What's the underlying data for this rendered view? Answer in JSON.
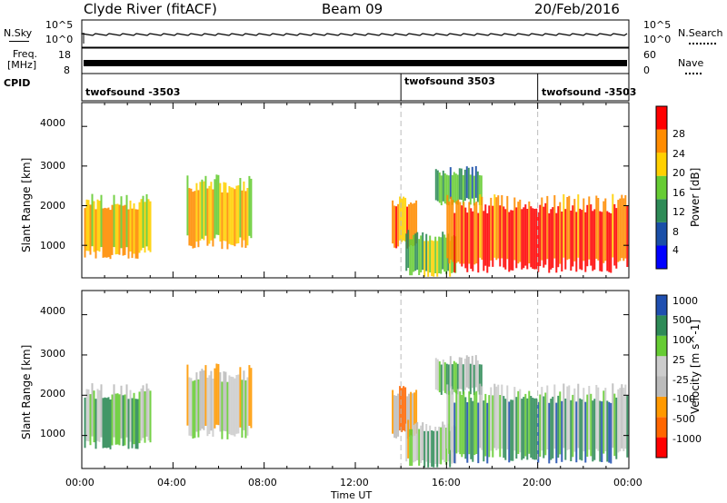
{
  "header": {
    "station": "Clyde River (fitACF)",
    "beam": "Beam 09",
    "date": "20/Feb/2016"
  },
  "noise_panel": {
    "left_label": "N.Sky",
    "left_ticks": [
      "10^5",
      "10^0"
    ],
    "right_label": "N.Search",
    "right_ticks": [
      "10^5",
      "10^0"
    ]
  },
  "freq_panel": {
    "left_label_line1": "Freq.",
    "left_label_line2": "[MHz]",
    "left_ticks": [
      "18",
      "8"
    ],
    "right_label": "Nave",
    "right_ticks": [
      "60",
      "0"
    ]
  },
  "cpid_panel": {
    "label": "CPID",
    "segments": [
      {
        "name": "twofsound -3503",
        "start_hour": 0
      },
      {
        "name": "twofsound 3503",
        "start_hour": 14
      },
      {
        "name": "twofsound -3503",
        "start_hour": 20
      }
    ]
  },
  "x_axis": {
    "title": "Time UT",
    "ticks": [
      "00:00",
      "04:00",
      "08:00",
      "12:00",
      "16:00",
      "20:00",
      "00:00"
    ]
  },
  "colors": {
    "power": [
      "#0000ff",
      "#1a4fa8",
      "#2e8b57",
      "#66cc33",
      "#ffd000",
      "#ff8c00",
      "#ff0000"
    ],
    "velocity": [
      "#ff0000",
      "#ff6600",
      "#ff9900",
      "#bbbbbb",
      "#cccccc",
      "#66cc33",
      "#2e8b57",
      "#1f4fb0"
    ]
  },
  "chart_data": [
    {
      "type": "heatmap",
      "panel": "power",
      "ylabel": "Slant Range [km]",
      "xlabel": "Time UT",
      "x_range_hours": [
        0,
        24
      ],
      "ylim": [
        180,
        4600
      ],
      "y_ticks": [
        "1000",
        "2000",
        "3000",
        "4000"
      ],
      "colorbar_label": "Power [dB]",
      "colorbar_ticks": [
        "4",
        "8",
        "12",
        "16",
        "20",
        "24",
        "28"
      ],
      "colorbar_range": [
        0,
        30
      ],
      "echo_regions": [
        {
          "t0": 0.1,
          "t1": 3.0,
          "r0": 650,
          "r1": 2300,
          "value": 20
        },
        {
          "t0": 4.6,
          "t1": 7.4,
          "r0": 900,
          "r1": 2800,
          "value": 19
        },
        {
          "t0": 13.6,
          "t1": 14.7,
          "r0": 900,
          "r1": 2300,
          "value": 22
        },
        {
          "t0": 14.2,
          "t1": 16.4,
          "r0": 200,
          "r1": 1400,
          "value": 14
        },
        {
          "t0": 15.5,
          "t1": 17.5,
          "r0": 2000,
          "r1": 3000,
          "value": 12
        },
        {
          "t0": 16.0,
          "t1": 23.9,
          "r0": 300,
          "r1": 2300,
          "value": 26
        }
      ]
    },
    {
      "type": "heatmap",
      "panel": "velocity",
      "ylabel": "Slant Range [km]",
      "xlabel": "Time UT",
      "x_range_hours": [
        0,
        24
      ],
      "ylim": [
        180,
        4600
      ],
      "y_ticks": [
        "1000",
        "2000",
        "3000",
        "4000"
      ],
      "colorbar_label": "Velocity [m s^-1]",
      "colorbar_ticks": [
        "-1000",
        "-500",
        "-100",
        "-25",
        "25",
        "100",
        "500",
        "1000"
      ],
      "colorbar_range": [
        -1000,
        1000
      ],
      "echo_regions": [
        {
          "t0": 0.1,
          "t1": 3.0,
          "r0": 650,
          "r1": 2300,
          "value": 300
        },
        {
          "t0": 4.6,
          "t1": 7.4,
          "r0": 900,
          "r1": 2800,
          "value": -60
        },
        {
          "t0": 13.6,
          "t1": 14.7,
          "r0": 900,
          "r1": 2300,
          "value": -400
        },
        {
          "t0": 14.2,
          "t1": 16.4,
          "r0": 200,
          "r1": 1400,
          "value": 150
        },
        {
          "t0": 15.5,
          "t1": 17.5,
          "r0": 2000,
          "r1": 3000,
          "value": 200
        },
        {
          "t0": 16.0,
          "t1": 23.9,
          "r0": 300,
          "r1": 2300,
          "value": 400
        }
      ]
    }
  ]
}
